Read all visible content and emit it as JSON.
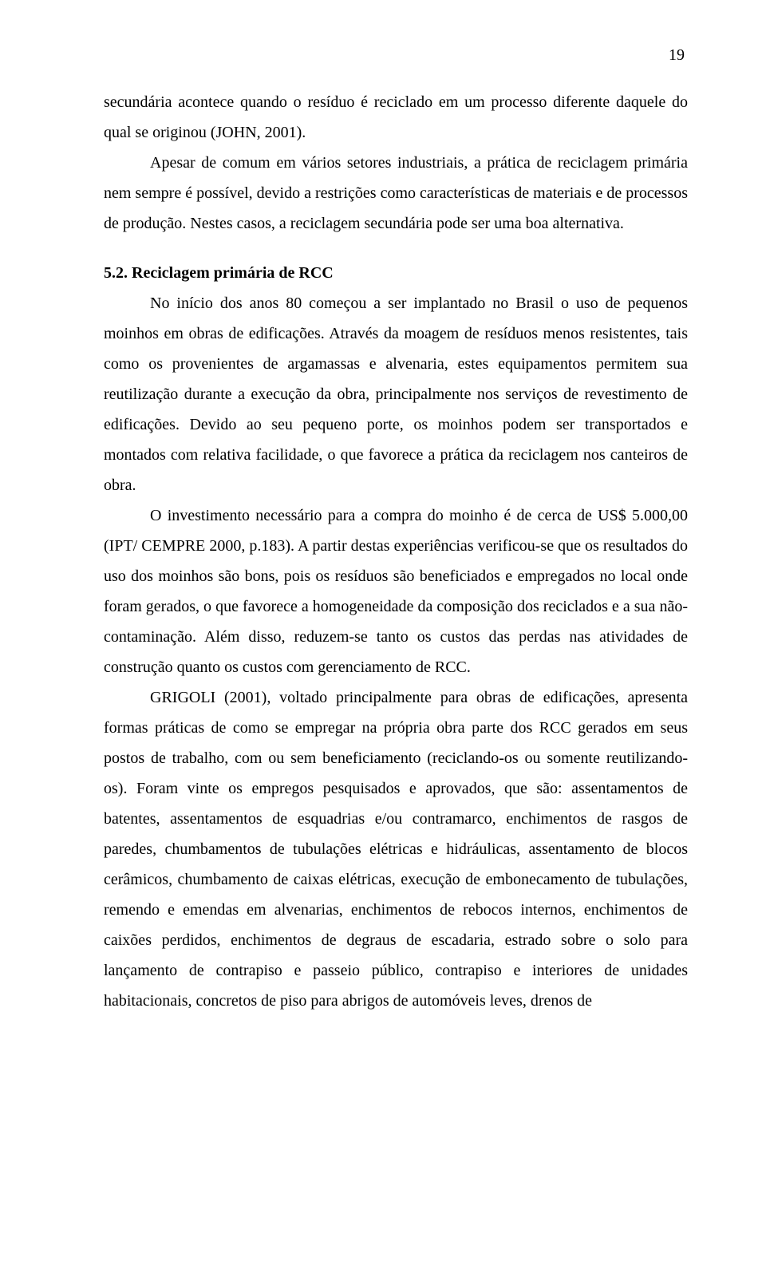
{
  "page_number": "19",
  "p1": "secundária acontece quando o resíduo é reciclado em um processo diferente daquele do qual se originou (JOHN, 2001).",
  "p2": "Apesar de comum em vários setores industriais, a prática de reciclagem primária nem sempre é possível, devido a restrições como características de materiais e de processos de produção.  Nestes casos, a reciclagem secundária pode ser uma boa alternativa.",
  "heading": "5.2. Reciclagem primária de RCC",
  "p3": "No início dos anos 80 começou a ser implantado no Brasil o uso de pequenos moinhos em obras de edificações. Através da moagem de resíduos menos resistentes, tais como os provenientes de argamassas e alvenaria, estes equipamentos permitem sua reutilização durante a execução da obra, principalmente nos serviços de revestimento de edificações. Devido ao seu pequeno porte, os moinhos podem ser transportados e montados com relativa facilidade, o que favorece a prática da reciclagem nos canteiros de obra.",
  "p4": "O investimento necessário para a compra do moinho é de cerca de US$ 5.000,00 (IPT/ CEMPRE 2000, p.183). A partir destas experiências verificou-se que os resultados do uso dos moinhos são bons, pois os resíduos são beneficiados e empregados no local onde foram gerados, o que favorece a homogeneidade da composição dos reciclados e a sua não-contaminação. Além disso, reduzem-se tanto os custos das perdas nas atividades de construção quanto os custos com gerenciamento de RCC.",
  "p5": "GRIGOLI (2001), voltado principalmente para obras de edificações, apresenta formas práticas de como se empregar na própria obra parte dos RCC gerados em seus postos de trabalho, com ou sem beneficiamento (reciclando-os ou somente reutilizando-os).  Foram vinte os empregos pesquisados e aprovados, que são: assentamentos de batentes, assentamentos de esquadrias e/ou contramarco, enchimentos de rasgos de paredes, chumbamentos de tubulações elétricas e hidráulicas, assentamento de blocos cerâmicos, chumbamento de caixas elétricas, execução de embonecamento de tubulações, remendo e emendas em alvenarias, enchimentos de rebocos internos, enchimentos de caixões perdidos, enchimentos de degraus de escadaria, estrado sobre o solo para lançamento de contrapiso e passeio público, contrapiso e interiores de unidades habitacionais, concretos de piso para abrigos de automóveis leves, drenos de"
}
